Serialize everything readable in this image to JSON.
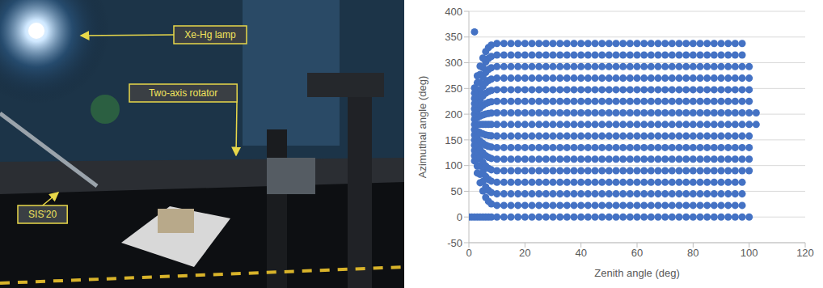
{
  "photo": {
    "labels": [
      "Xe-Hg lamp",
      "Two-axis rotator",
      "SIS'20"
    ]
  },
  "chart_data": {
    "type": "scatter",
    "xlabel": "Zenith angle (deg)",
    "ylabel": "Azimuthal angle (deg)",
    "color": "#4472c4",
    "marker": "circle",
    "grid": true,
    "xlim": [
      0,
      120
    ],
    "xticks": [
      0,
      20,
      40,
      60,
      80,
      100,
      120
    ],
    "ylim": [
      -50,
      400
    ],
    "yticks": [
      -50,
      0,
      50,
      100,
      150,
      200,
      250,
      300,
      350,
      400
    ],
    "x": [
      0,
      1,
      2,
      3,
      4,
      5,
      6,
      7,
      8,
      10,
      12.5,
      15,
      17.5,
      20,
      22.5,
      25,
      27.5,
      30,
      32.5,
      35,
      37.5,
      40,
      42.5,
      45,
      47.5,
      50,
      52.5,
      55,
      57.5,
      60,
      62.5,
      65,
      67.5,
      70,
      72.5,
      75,
      77.5,
      80,
      82.5,
      85,
      87.5,
      90,
      92.5,
      95,
      97.5,
      100,
      102.5
    ],
    "series": [
      {
        "values": [
          0,
          0,
          0,
          0,
          0,
          0,
          0,
          0,
          0,
          0,
          0,
          0,
          0,
          0,
          0,
          0,
          0,
          0,
          0,
          0,
          0,
          0,
          0,
          0,
          0,
          0,
          0,
          0,
          0,
          0,
          0,
          0,
          0,
          0,
          0,
          0,
          0,
          0,
          0,
          0,
          0,
          0,
          0,
          0,
          0,
          0,
          null
        ]
      },
      {
        "values": [
          null,
          null,
          109.1,
          85.5,
          66.6,
          50.8,
          38.2,
          30.4,
          25.6,
          22.5,
          22.5,
          22.5,
          22.5,
          22.5,
          22.5,
          22.5,
          22.5,
          22.5,
          22.5,
          22.5,
          22.5,
          22.5,
          22.5,
          22.5,
          22.5,
          22.5,
          22.5,
          22.5,
          22.5,
          22.5,
          22.5,
          22.5,
          22.5,
          22.5,
          22.5,
          22.5,
          22.5,
          22.5,
          22.5,
          22.5,
          22.5,
          22.5,
          22.5,
          22.5,
          22.5,
          null,
          null
        ]
      },
      {
        "values": [
          null,
          null,
          119.2,
          99,
          82.8,
          69.3,
          58.5,
          51.7,
          47.7,
          45,
          45,
          45,
          45,
          45,
          45,
          45,
          45,
          45,
          45,
          45,
          45,
          45,
          45,
          45,
          45,
          45,
          45,
          45,
          45,
          45,
          45,
          45,
          45,
          45,
          45,
          45,
          45,
          45,
          45,
          45,
          45,
          45,
          45,
          45,
          45,
          null,
          null
        ]
      },
      {
        "values": [
          null,
          null,
          129.4,
          112.5,
          99,
          87.7,
          78.7,
          73.1,
          69.7,
          67.5,
          67.5,
          67.5,
          67.5,
          67.5,
          67.5,
          67.5,
          67.5,
          67.5,
          67.5,
          67.5,
          67.5,
          67.5,
          67.5,
          67.5,
          67.5,
          67.5,
          67.5,
          67.5,
          67.5,
          67.5,
          67.5,
          67.5,
          67.5,
          67.5,
          67.5,
          67.5,
          67.5,
          67.5,
          67.5,
          67.5,
          67.5,
          67.5,
          67.5,
          67.5,
          67.5,
          null,
          null
        ]
      },
      {
        "values": [
          null,
          null,
          139.5,
          126,
          115.2,
          106.2,
          99,
          94.5,
          91.8,
          90,
          90,
          90,
          90,
          90,
          90,
          90,
          90,
          90,
          90,
          90,
          90,
          90,
          90,
          90,
          90,
          90,
          90,
          90,
          90,
          90,
          90,
          90,
          90,
          90,
          90,
          90,
          90,
          90,
          90,
          90,
          90,
          90,
          90,
          90,
          90,
          90,
          null
        ]
      },
      {
        "values": [
          null,
          null,
          149.6,
          139.5,
          131.4,
          124.6,
          119.2,
          115.9,
          113.8,
          112.5,
          112.5,
          112.5,
          112.5,
          112.5,
          112.5,
          112.5,
          112.5,
          112.5,
          112.5,
          112.5,
          112.5,
          112.5,
          112.5,
          112.5,
          112.5,
          112.5,
          112.5,
          112.5,
          112.5,
          112.5,
          112.5,
          112.5,
          112.5,
          112.5,
          112.5,
          112.5,
          112.5,
          112.5,
          112.5,
          112.5,
          112.5,
          112.5,
          112.5,
          112.5,
          112.5,
          112.5,
          null
        ]
      },
      {
        "values": [
          null,
          null,
          159.7,
          153,
          147.6,
          143.1,
          139.5,
          137.2,
          135.9,
          135,
          135,
          135,
          135,
          135,
          135,
          135,
          135,
          135,
          135,
          135,
          135,
          135,
          135,
          135,
          135,
          135,
          135,
          135,
          135,
          135,
          135,
          135,
          135,
          135,
          135,
          135,
          135,
          135,
          135,
          135,
          135,
          135,
          135,
          135,
          135,
          135,
          null
        ]
      },
      {
        "values": [
          null,
          null,
          169.9,
          166.5,
          163.8,
          161.5,
          159.7,
          158.6,
          157.9,
          157.5,
          157.5,
          157.5,
          157.5,
          157.5,
          157.5,
          157.5,
          157.5,
          157.5,
          157.5,
          157.5,
          157.5,
          157.5,
          157.5,
          157.5,
          157.5,
          157.5,
          157.5,
          157.5,
          157.5,
          157.5,
          157.5,
          157.5,
          157.5,
          157.5,
          157.5,
          157.5,
          157.5,
          157.5,
          157.5,
          157.5,
          157.5,
          157.5,
          157.5,
          157.5,
          157.5,
          157.5,
          null
        ]
      },
      {
        "values": [
          null,
          null,
          180,
          180,
          180,
          180,
          180,
          180,
          180,
          180,
          180,
          180,
          180,
          180,
          180,
          180,
          180,
          180,
          180,
          180,
          180,
          180,
          180,
          180,
          180,
          180,
          180,
          180,
          180,
          180,
          180,
          180,
          180,
          180,
          180,
          180,
          180,
          180,
          180,
          180,
          180,
          180,
          180,
          180,
          180,
          180,
          180
        ]
      },
      {
        "values": [
          null,
          null,
          190.1,
          193.5,
          196.2,
          198.5,
          200.3,
          201.4,
          202.1,
          202.5,
          202.5,
          202.5,
          202.5,
          202.5,
          202.5,
          202.5,
          202.5,
          202.5,
          202.5,
          202.5,
          202.5,
          202.5,
          202.5,
          202.5,
          202.5,
          202.5,
          202.5,
          202.5,
          202.5,
          202.5,
          202.5,
          202.5,
          202.5,
          202.5,
          202.5,
          202.5,
          202.5,
          202.5,
          202.5,
          202.5,
          202.5,
          202.5,
          202.5,
          202.5,
          202.5,
          202.5,
          202.5
        ]
      },
      {
        "values": [
          null,
          null,
          200.3,
          207,
          212.4,
          216.9,
          220.5,
          222.8,
          224.1,
          225,
          225,
          225,
          225,
          225,
          225,
          225,
          225,
          225,
          225,
          225,
          225,
          225,
          225,
          225,
          225,
          225,
          225,
          225,
          225,
          225,
          225,
          225,
          225,
          225,
          225,
          225,
          225,
          225,
          225,
          225,
          225,
          225,
          225,
          225,
          225,
          225,
          null
        ]
      },
      {
        "values": [
          null,
          null,
          210.4,
          220.5,
          228.6,
          235.4,
          240.8,
          244.1,
          246.2,
          247.5,
          247.5,
          247.5,
          247.5,
          247.5,
          247.5,
          247.5,
          247.5,
          247.5,
          247.5,
          247.5,
          247.5,
          247.5,
          247.5,
          247.5,
          247.5,
          247.5,
          247.5,
          247.5,
          247.5,
          247.5,
          247.5,
          247.5,
          247.5,
          247.5,
          247.5,
          247.5,
          247.5,
          247.5,
          247.5,
          247.5,
          247.5,
          247.5,
          247.5,
          247.5,
          247.5,
          247.5,
          null
        ]
      },
      {
        "values": [
          null,
          null,
          220.5,
          234,
          244.8,
          253.8,
          261,
          265.5,
          268.2,
          270,
          270,
          270,
          270,
          270,
          270,
          270,
          270,
          270,
          270,
          270,
          270,
          270,
          270,
          270,
          270,
          270,
          270,
          270,
          270,
          270,
          270,
          270,
          270,
          270,
          270,
          270,
          270,
          270,
          270,
          270,
          270,
          270,
          270,
          270,
          270,
          270,
          null
        ]
      },
      {
        "values": [
          null,
          null,
          230.6,
          247.5,
          261,
          272.3,
          281.3,
          286.9,
          290.3,
          292.5,
          292.5,
          292.5,
          292.5,
          292.5,
          292.5,
          292.5,
          292.5,
          292.5,
          292.5,
          292.5,
          292.5,
          292.5,
          292.5,
          292.5,
          292.5,
          292.5,
          292.5,
          292.5,
          292.5,
          292.5,
          292.5,
          292.5,
          292.5,
          292.5,
          292.5,
          292.5,
          292.5,
          292.5,
          292.5,
          292.5,
          292.5,
          292.5,
          292.5,
          292.5,
          292.5,
          292.5,
          null
        ]
      },
      {
        "values": [
          null,
          null,
          240.8,
          261,
          277.2,
          290.7,
          301.5,
          308.3,
          312.3,
          315,
          315,
          315,
          315,
          315,
          315,
          315,
          315,
          315,
          315,
          315,
          315,
          315,
          315,
          315,
          315,
          315,
          315,
          315,
          315,
          315,
          315,
          315,
          315,
          315,
          315,
          315,
          315,
          315,
          315,
          315,
          315,
          315,
          315,
          315,
          315,
          null,
          null
        ]
      },
      {
        "values": [
          null,
          null,
          250.9,
          274.5,
          293.4,
          309.2,
          321.8,
          329.6,
          334.4,
          337.5,
          337.5,
          337.5,
          337.5,
          337.5,
          337.5,
          337.5,
          337.5,
          337.5,
          337.5,
          337.5,
          337.5,
          337.5,
          337.5,
          337.5,
          337.5,
          337.5,
          337.5,
          337.5,
          337.5,
          337.5,
          337.5,
          337.5,
          337.5,
          337.5,
          337.5,
          337.5,
          337.5,
          337.5,
          337.5,
          337.5,
          337.5,
          337.5,
          337.5,
          337.5,
          337.5,
          null,
          null
        ]
      },
      {
        "x": [
          2
        ],
        "values": [
          360
        ]
      }
    ]
  }
}
